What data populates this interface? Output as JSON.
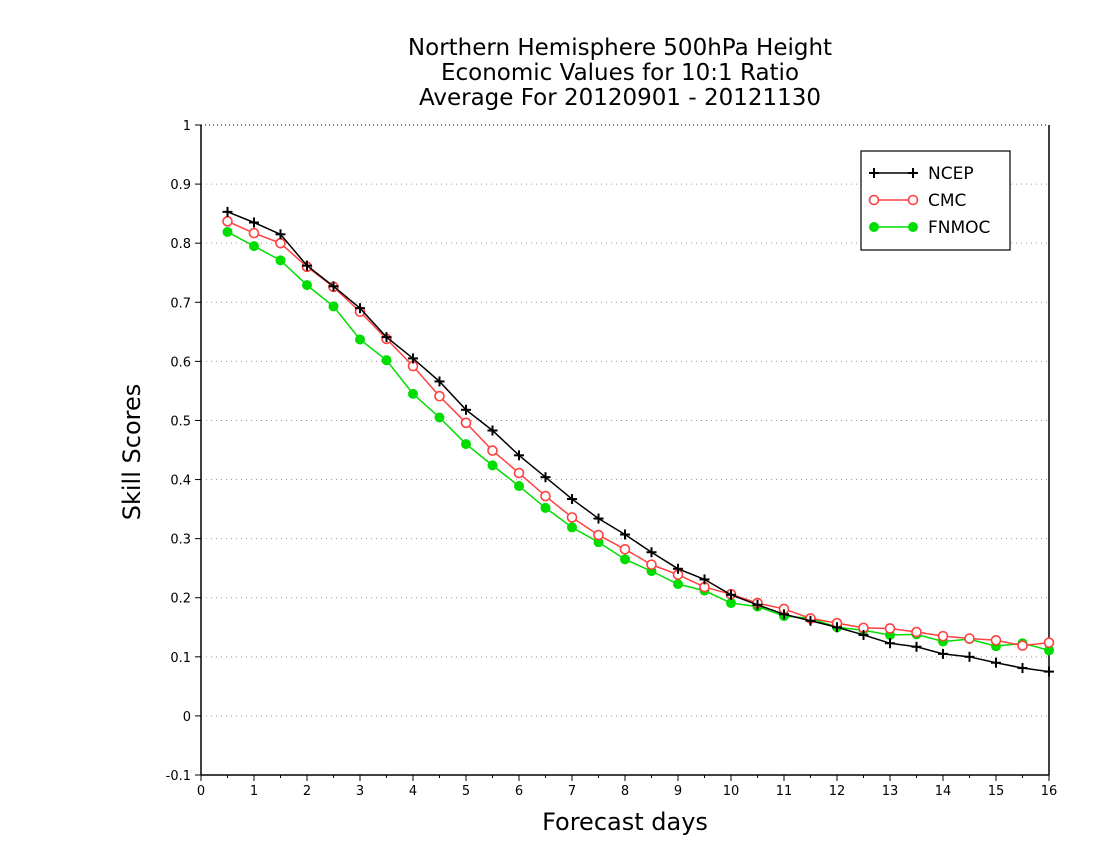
{
  "chart_data": {
    "type": "line",
    "title_lines": [
      "Northern Hemisphere 500hPa Height",
      "Economic Values for 10:1 Ratio",
      "Average For 20120901 - 20121130"
    ],
    "xlabel": "Forecast days",
    "ylabel": "Skill Scores",
    "xlim": [
      0,
      16
    ],
    "ylim": [
      -0.1,
      1
    ],
    "x_ticks": [
      "0",
      "1",
      "2",
      "3",
      "4",
      "5",
      "6",
      "7",
      "8",
      "9",
      "10",
      "11",
      "12",
      "13",
      "14",
      "15",
      "16"
    ],
    "y_ticks": [
      "-0.1",
      "0",
      "0.1",
      "0.2",
      "0.3",
      "0.4",
      "0.5",
      "0.6",
      "0.7",
      "0.8",
      "0.9",
      "1"
    ],
    "grid": "horizontal dotted",
    "legend_position": "top-right",
    "x": [
      0.5,
      1,
      1.5,
      2,
      2.5,
      3,
      3.5,
      4,
      4.5,
      5,
      5.5,
      6,
      6.5,
      7,
      7.5,
      8,
      8.5,
      9,
      9.5,
      10,
      10.5,
      11,
      11.5,
      12,
      12.5,
      13,
      13.5,
      14,
      14.5,
      15,
      15.5,
      16
    ],
    "series": [
      {
        "name": "NCEP",
        "color": "#000000",
        "marker": "plus",
        "values": [
          0.853,
          0.835,
          0.815,
          0.762,
          0.727,
          0.69,
          0.641,
          0.605,
          0.566,
          0.518,
          0.483,
          0.441,
          0.404,
          0.367,
          0.334,
          0.307,
          0.277,
          0.249,
          0.231,
          0.205,
          0.188,
          0.172,
          0.161,
          0.15,
          0.137,
          0.123,
          0.117,
          0.105,
          0.1,
          0.09,
          0.081,
          0.075
        ]
      },
      {
        "name": "CMC",
        "color": "#ff4040",
        "marker": "open-circle",
        "values": [
          0.837,
          0.817,
          0.8,
          0.76,
          0.726,
          0.684,
          0.638,
          0.592,
          0.541,
          0.496,
          0.449,
          0.411,
          0.372,
          0.336,
          0.306,
          0.282,
          0.256,
          0.239,
          0.218,
          0.206,
          0.191,
          0.181,
          0.165,
          0.157,
          0.149,
          0.148,
          0.142,
          0.135,
          0.131,
          0.128,
          0.119,
          0.124
        ]
      },
      {
        "name": "FNMOC",
        "color": "#00dd00",
        "marker": "filled-circle",
        "values": [
          0.819,
          0.795,
          0.771,
          0.729,
          0.693,
          0.637,
          0.602,
          0.545,
          0.505,
          0.46,
          0.424,
          0.389,
          0.352,
          0.319,
          0.294,
          0.265,
          0.245,
          0.223,
          0.212,
          0.191,
          0.185,
          0.169,
          0.165,
          0.15,
          0.145,
          0.137,
          0.138,
          0.126,
          0.13,
          0.118,
          0.123,
          0.111
        ]
      }
    ]
  }
}
